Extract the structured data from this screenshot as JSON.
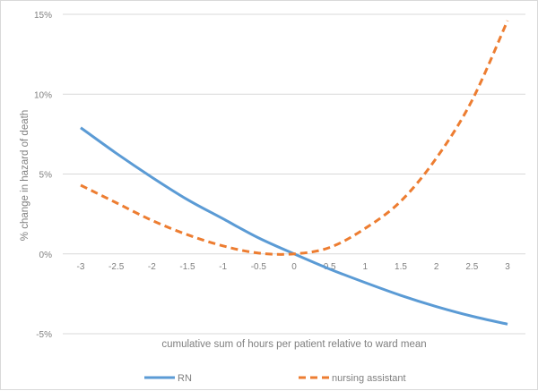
{
  "chart_data": {
    "type": "line",
    "title": "",
    "xlabel": "cumulative sum of hours per patient relative to ward mean",
    "ylabel": "% change in hazard of death",
    "x": [
      -3,
      -2.5,
      -2,
      -1.5,
      -1,
      -0.5,
      0,
      0.5,
      1,
      1.5,
      2,
      2.5,
      3
    ],
    "x_tick_labels": [
      "-3",
      "-2.5",
      "-2",
      "-1.5",
      "-1",
      "-0.5",
      "0",
      "0.5",
      "1",
      "1.5",
      "2",
      "2.5",
      "3"
    ],
    "y_ticks": [
      -5,
      0,
      5,
      10,
      15
    ],
    "y_tick_labels": [
      "-5%",
      "0%",
      "5%",
      "10%",
      "15%"
    ],
    "ylim": [
      -5,
      15
    ],
    "grid": "horizontal",
    "legend_position": "bottom",
    "series": [
      {
        "name": "RN",
        "color": "#5b9bd5",
        "style": "solid",
        "values": [
          7.9,
          6.3,
          4.8,
          3.4,
          2.2,
          1.0,
          0,
          -0.95,
          -1.8,
          -2.6,
          -3.3,
          -3.9,
          -4.4
        ]
      },
      {
        "name": "nursing assistant",
        "color": "#ed7d31",
        "style": "dashed",
        "values": [
          4.3,
          3.2,
          2.1,
          1.2,
          0.5,
          0.05,
          0,
          0.4,
          1.6,
          3.3,
          6.0,
          9.6,
          14.6
        ]
      }
    ]
  }
}
